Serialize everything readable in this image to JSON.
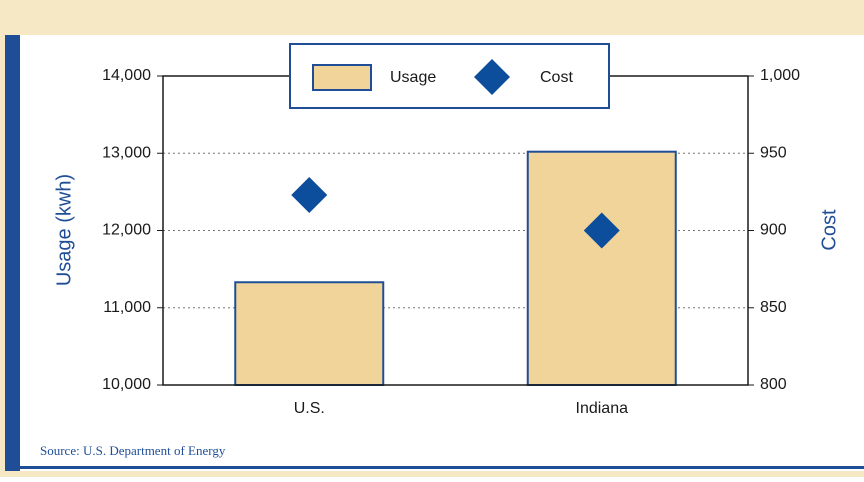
{
  "chart_data": {
    "type": "bar",
    "categories": [
      "U.S.",
      "Indiana"
    ],
    "series": [
      {
        "name": "Usage",
        "type": "bar",
        "color": "#f0d49a",
        "values": [
          11330,
          13020
        ]
      },
      {
        "name": "Cost",
        "type": "scatter",
        "marker": "diamond",
        "color": "#0c4d9c",
        "axis": "y2",
        "values": [
          923,
          900
        ]
      }
    ],
    "ylabel": "Usage (kwh)",
    "y2label": "Cost",
    "ylim": [
      10000,
      14000
    ],
    "yticks": [
      {
        "value": 10000,
        "label": "10,000"
      },
      {
        "value": 11000,
        "label": "11,000"
      },
      {
        "value": 12000,
        "label": "12,000"
      },
      {
        "value": 13000,
        "label": "13,000"
      },
      {
        "value": 14000,
        "label": "14,000"
      }
    ],
    "y2lim": [
      800,
      1000
    ],
    "y2ticks": [
      800,
      850,
      900,
      950,
      {
        "value": 1000,
        "label": "1,000"
      }
    ],
    "grid": true,
    "legend": "top",
    "source": "Source: U.S. Department of Energy"
  }
}
